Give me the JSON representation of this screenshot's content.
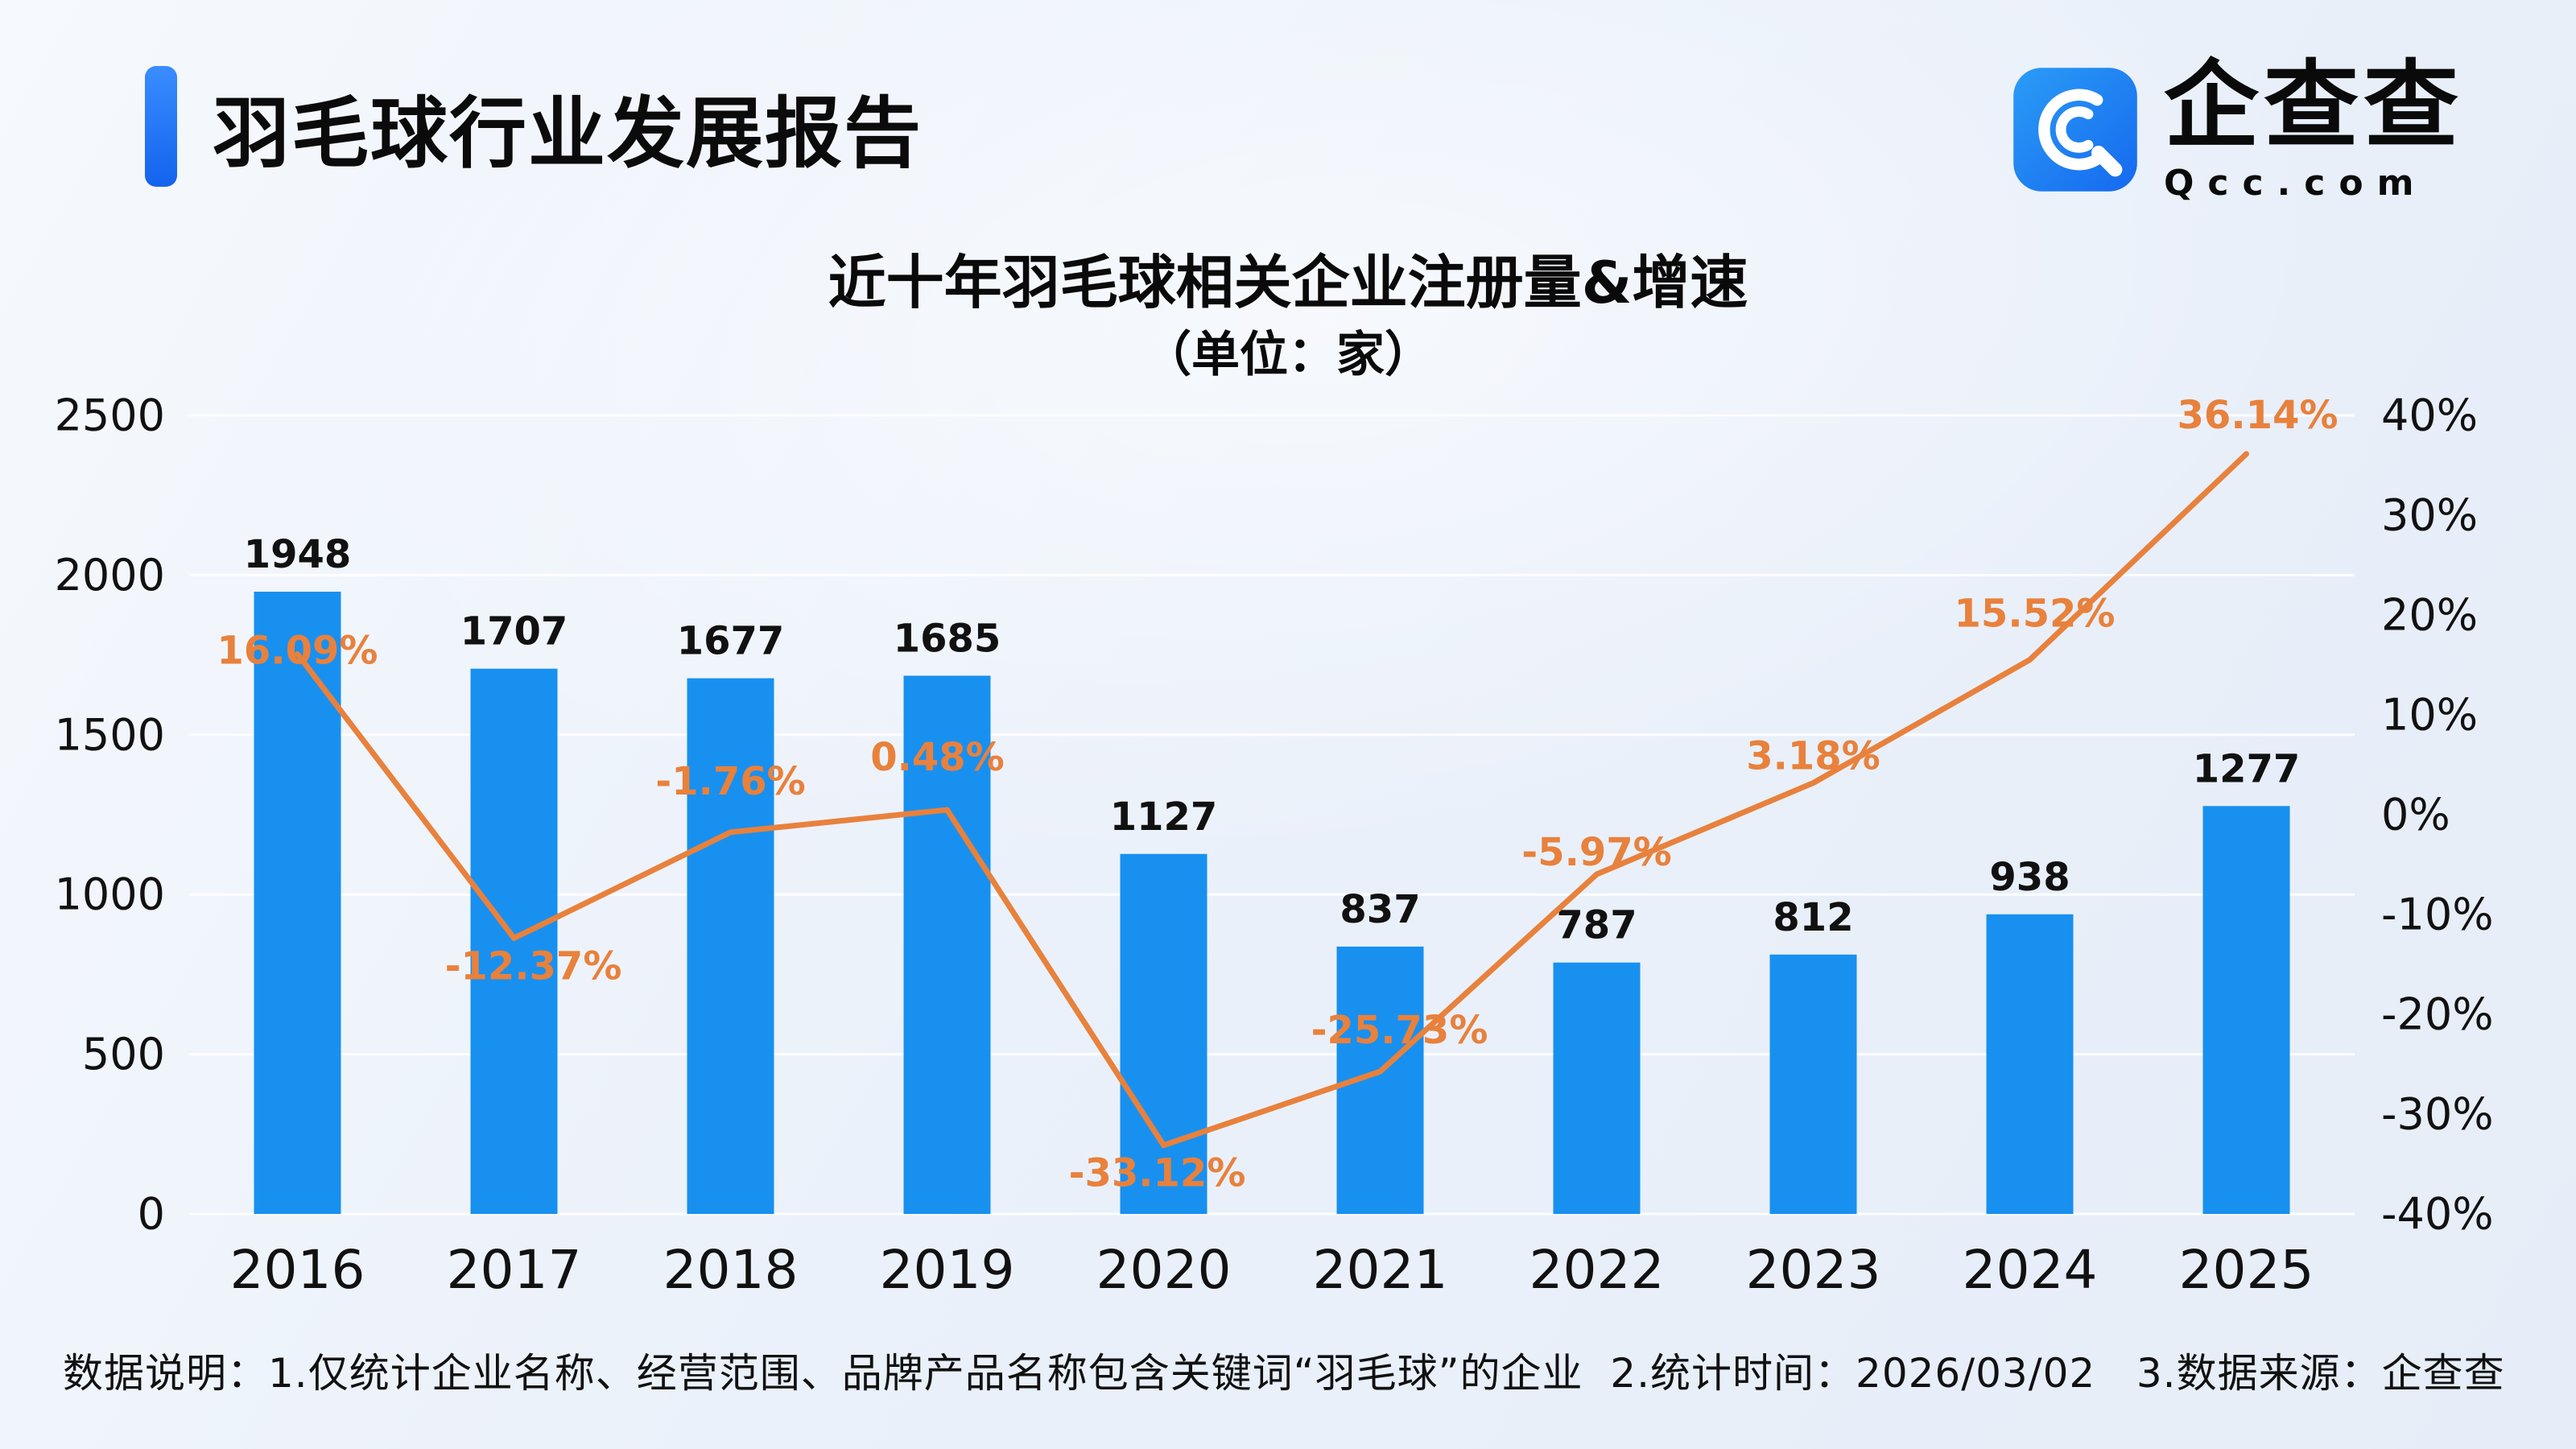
{
  "header": {
    "title": "羽毛球行业发展报告"
  },
  "logo": {
    "name": "企查查",
    "domain": "Qcc.com"
  },
  "chart_data": {
    "type": "bar",
    "title": "近十年羽毛球相关企业注册量&增速",
    "subtitle": "（单位：家）",
    "categories": [
      "2016",
      "2017",
      "2018",
      "2019",
      "2020",
      "2021",
      "2022",
      "2023",
      "2024",
      "2025"
    ],
    "series": [
      {
        "name": "注册量",
        "type": "bar",
        "values": [
          1948,
          1707,
          1677,
          1685,
          1127,
          837,
          787,
          812,
          938,
          1277
        ],
        "labels": [
          "1948",
          "1707",
          "1677",
          "1685",
          "1127",
          "837",
          "787",
          "812",
          "938",
          "1277"
        ]
      },
      {
        "name": "增速",
        "type": "line",
        "values": [
          16.09,
          -12.37,
          -1.76,
          0.48,
          -33.12,
          -25.73,
          -5.97,
          3.18,
          15.52,
          36.14
        ],
        "labels": [
          "16.09%",
          "-12.37%",
          "-1.76%",
          "0.48%",
          "-33.12%",
          "-25.73%",
          "-5.97%",
          "3.18%",
          "15.52%",
          "36.14%"
        ]
      }
    ],
    "left_axis": {
      "min": 0,
      "max": 2500,
      "ticks": [
        "2500",
        "2000",
        "1500",
        "1000",
        "500",
        "0"
      ]
    },
    "right_axis": {
      "min": -40,
      "max": 40,
      "ticks": [
        "40%",
        "30%",
        "20%",
        "10%",
        "0%",
        "-10%",
        "-20%",
        "-30%",
        "-40%"
      ]
    },
    "layout": {
      "grid": true,
      "legend": "none",
      "label_dy": [
        -4,
        35,
        -63,
        -65,
        35,
        -51,
        -27,
        -33,
        -57,
        -48
      ],
      "label_dx": [
        0,
        24,
        0,
        -12,
        -8,
        24,
        0,
        0,
        6,
        14
      ]
    },
    "colors": {
      "bar": "#1890F0",
      "line": "#E8813C",
      "bar_label": "#111111",
      "line_label": "#E8813C",
      "axis_label": "#111111"
    }
  },
  "footer": {
    "note": "数据说明：1.仅统计企业名称、经营范围、品牌产品名称包含关键词“羽毛球”的企业  2.统计时间：2026/03/02   3.数据来源：企查查"
  }
}
